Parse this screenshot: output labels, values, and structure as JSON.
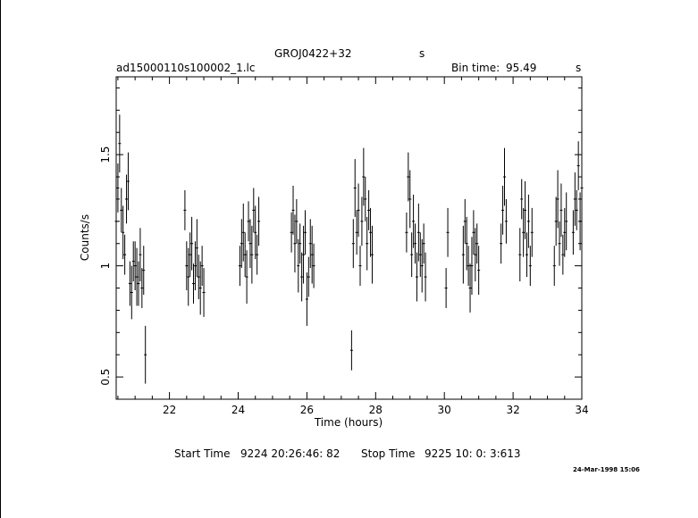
{
  "header": {
    "source": "GROJ0422+32",
    "source_suffix": "s",
    "file": "ad15000110s100002_1.lc",
    "bin_time_label": "Bin time:",
    "bin_time_value": "95.49",
    "bin_time_unit": "s"
  },
  "footer": {
    "start_label": "Start Time",
    "start_value": "9224 20:26:46: 82",
    "stop_label": "Stop Time",
    "stop_value": "9225 10: 0: 3:613",
    "stamp": "24-Mar-1998 15:06"
  },
  "chart_data": {
    "type": "line",
    "xlabel": "Time (hours)",
    "ylabel": "Counts/s",
    "xlim": [
      20.45,
      34.0
    ],
    "ylim": [
      0.4,
      1.85
    ],
    "xticks": [
      22,
      24,
      26,
      28,
      30,
      32,
      34
    ],
    "yticks": [
      0.5,
      1,
      1.5
    ],
    "ytick_labels": [
      "0.5",
      "1",
      "1.5"
    ],
    "grid": false,
    "segments": [
      {
        "x": [
          20.45,
          20.5,
          20.55,
          20.6,
          20.65,
          20.7,
          20.75,
          20.8,
          20.85,
          20.9,
          20.95,
          21.0,
          21.05,
          21.1,
          21.15,
          21.2,
          21.25,
          21.3
        ],
        "y": [
          1.2,
          1.35,
          1.55,
          1.25,
          1.15,
          1.05,
          1.3,
          1.38,
          0.92,
          0.88,
          1.02,
          1.0,
          0.95,
          0.92,
          1.05,
          0.9,
          0.98,
          0.6
        ]
      },
      {
        "x": [
          22.45,
          22.5,
          22.55,
          22.6,
          22.65,
          22.7,
          22.75,
          22.8,
          22.85,
          22.9,
          22.95,
          23.0
        ],
        "y": [
          1.25,
          1.0,
          0.95,
          1.05,
          1.1,
          0.92,
          1.0,
          1.08,
          0.95,
          0.9,
          1.0,
          0.88
        ]
      },
      {
        "x": [
          24.05,
          24.1,
          24.15,
          24.2,
          24.25,
          24.3,
          24.35,
          24.4,
          24.45,
          24.5,
          24.55,
          24.6
        ],
        "y": [
          1.0,
          1.1,
          1.15,
          1.05,
          0.95,
          1.2,
          1.1,
          1.05,
          1.25,
          1.15,
          1.05,
          1.2
        ]
      },
      {
        "x": [
          25.55,
          25.6,
          25.65,
          25.7,
          25.75,
          25.8,
          25.85,
          25.9,
          25.95,
          26.0,
          26.05,
          26.1,
          26.15,
          26.2
        ],
        "y": [
          1.15,
          1.25,
          1.1,
          1.2,
          1.0,
          1.1,
          0.95,
          1.05,
          1.15,
          0.85,
          0.95,
          1.1,
          1.05,
          1.0
        ]
      },
      {
        "x": [
          27.3,
          27.35,
          27.4,
          27.45,
          27.5,
          27.55,
          27.6,
          27.65,
          27.7,
          27.75,
          27.8,
          27.85,
          27.9
        ],
        "y": [
          0.62,
          1.1,
          1.35,
          1.15,
          1.25,
          1.0,
          1.2,
          1.4,
          1.3,
          1.1,
          1.25,
          1.15,
          1.05
        ]
      },
      {
        "x": [
          28.9,
          28.95,
          29.0,
          29.05,
          29.1,
          29.15,
          29.2,
          29.25,
          29.3,
          29.35,
          29.4,
          29.45
        ],
        "y": [
          1.15,
          1.4,
          1.3,
          1.05,
          1.2,
          1.1,
          0.95,
          1.15,
          1.05,
          1.0,
          1.1,
          0.95
        ]
      },
      {
        "x": [
          30.05,
          30.1,
          30.55,
          30.6,
          30.65,
          30.7,
          30.75,
          30.8,
          30.85,
          30.9,
          30.95,
          31.0
        ],
        "y": [
          0.9,
          1.15,
          1.05,
          1.2,
          1.1,
          1.0,
          0.9,
          1.0,
          1.15,
          1.05,
          1.1,
          0.98
        ]
      },
      {
        "x": [
          31.65,
          31.7,
          31.75,
          31.8,
          32.2,
          32.25,
          32.3,
          32.35,
          32.4,
          32.45,
          32.5,
          32.55
        ],
        "y": [
          1.1,
          1.25,
          1.4,
          1.2,
          1.05,
          1.3,
          1.15,
          1.25,
          1.05,
          1.2,
          1.0,
          1.15
        ]
      },
      {
        "x": [
          33.2,
          33.25,
          33.3,
          33.35,
          33.4,
          33.45,
          33.5,
          33.55,
          33.75,
          33.8,
          33.85,
          33.9,
          33.95,
          34.0
        ],
        "y": [
          1.0,
          1.2,
          1.3,
          1.1,
          1.25,
          1.05,
          1.15,
          1.2,
          1.15,
          1.3,
          1.25,
          1.45,
          1.2,
          1.35
        ]
      }
    ]
  }
}
